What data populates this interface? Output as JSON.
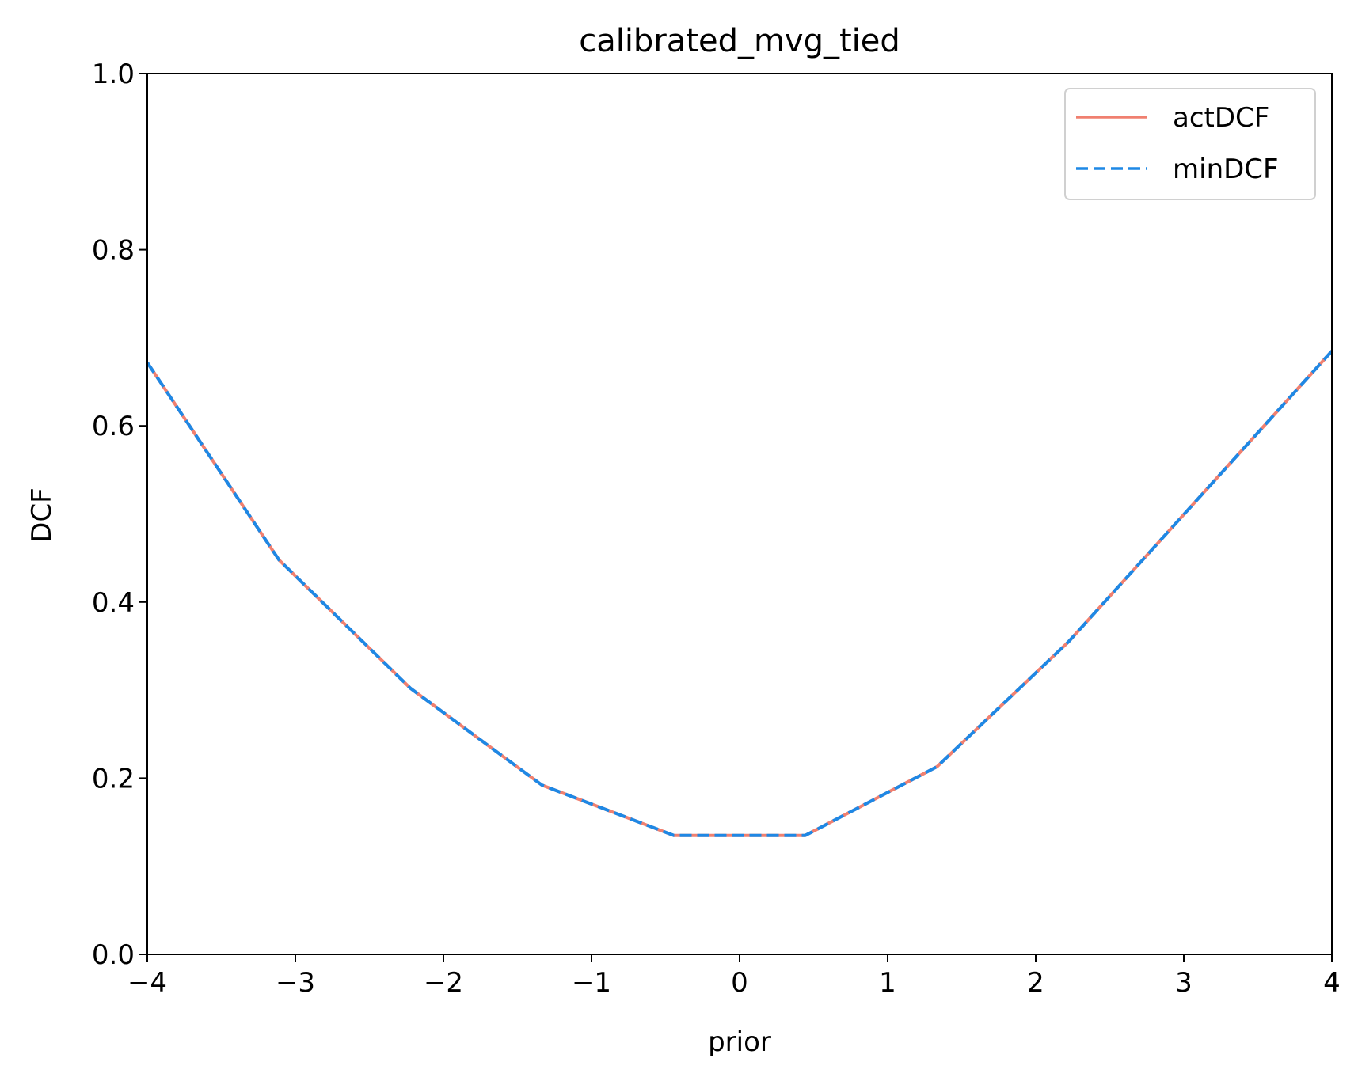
{
  "chart_data": {
    "type": "line",
    "title": "calibrated_mvg_tied",
    "xlabel": "prior",
    "ylabel": "DCF",
    "xlim": [
      -4,
      4
    ],
    "ylim": [
      0.0,
      1.0
    ],
    "x_ticks": [
      "−4",
      "−3",
      "−2",
      "−1",
      "0",
      "1",
      "2",
      "3",
      "4"
    ],
    "x_tick_values": [
      -4,
      -3,
      -2,
      -1,
      0,
      1,
      2,
      3,
      4
    ],
    "y_ticks": [
      "0.0",
      "0.2",
      "0.4",
      "0.6",
      "0.8",
      "1.0"
    ],
    "y_tick_values": [
      0.0,
      0.2,
      0.4,
      0.6,
      0.8,
      1.0
    ],
    "grid": false,
    "legend_position": "top-right",
    "x": [
      -4.0,
      -3.111,
      -2.222,
      -1.333,
      -0.444,
      0.444,
      1.333,
      2.222,
      3.111,
      4.0
    ],
    "series": [
      {
        "name": "actDCF",
        "color": "#f08070",
        "style": "solid",
        "values": [
          0.672,
          0.448,
          0.302,
          0.192,
          0.135,
          0.135,
          0.213,
          0.355,
          0.52,
          0.685
        ]
      },
      {
        "name": "minDCF",
        "color": "#1e88e5",
        "style": "dashed",
        "values": [
          0.672,
          0.448,
          0.302,
          0.192,
          0.135,
          0.135,
          0.213,
          0.355,
          0.52,
          0.685
        ]
      }
    ]
  }
}
